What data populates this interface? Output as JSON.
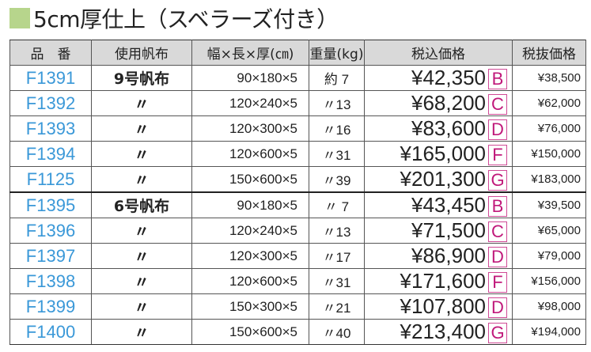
{
  "title": "5cm厚仕上（スベラーズ付き）",
  "accent_color": "#b7d58c",
  "headers": [
    "品　番",
    "使用帆布",
    "幅×長×厚(㎝)",
    "重量(kg)",
    "税込価格",
    "税抜価格"
  ],
  "rows": [
    {
      "code": "F1391",
      "fabric": "9号帆布",
      "size": "90×180×5",
      "weight": "約 7",
      "price": "¥42,350",
      "rank": "B",
      "price_ex": "¥38,500"
    },
    {
      "code": "F1392",
      "fabric": "〃",
      "size": "120×240×5",
      "weight": "〃13",
      "price": "¥68,200",
      "rank": "C",
      "price_ex": "¥62,000"
    },
    {
      "code": "F1393",
      "fabric": "〃",
      "size": "120×300×5",
      "weight": "〃16",
      "price": "¥83,600",
      "rank": "D",
      "price_ex": "¥76,000"
    },
    {
      "code": "F1394",
      "fabric": "〃",
      "size": "120×600×5",
      "weight": "〃31",
      "price": "¥165,000",
      "rank": "F",
      "price_ex": "¥150,000"
    },
    {
      "code": "F1125",
      "fabric": "〃",
      "size": "150×600×5",
      "weight": "〃39",
      "price": "¥201,300",
      "rank": "G",
      "price_ex": "¥183,000"
    },
    {
      "code": "F1395",
      "fabric": "6号帆布",
      "size": "90×180×5",
      "weight": "〃 7",
      "price": "¥43,450",
      "rank": "B",
      "price_ex": "¥39,500"
    },
    {
      "code": "F1396",
      "fabric": "〃",
      "size": "120×240×5",
      "weight": "〃13",
      "price": "¥71,500",
      "rank": "C",
      "price_ex": "¥65,000"
    },
    {
      "code": "F1397",
      "fabric": "〃",
      "size": "120×300×5",
      "weight": "〃17",
      "price": "¥86,900",
      "rank": "D",
      "price_ex": "¥79,000"
    },
    {
      "code": "F1398",
      "fabric": "〃",
      "size": "120×600×5",
      "weight": "〃31",
      "price": "¥171,600",
      "rank": "F",
      "price_ex": "¥156,000"
    },
    {
      "code": "F1399",
      "fabric": "〃",
      "size": "150×300×5",
      "weight": "〃21",
      "price": "¥107,800",
      "rank": "D",
      "price_ex": "¥98,000"
    },
    {
      "code": "F1400",
      "fabric": "〃",
      "size": "150×600×5",
      "weight": "〃40",
      "price": "¥213,400",
      "rank": "G",
      "price_ex": "¥194,000"
    }
  ]
}
